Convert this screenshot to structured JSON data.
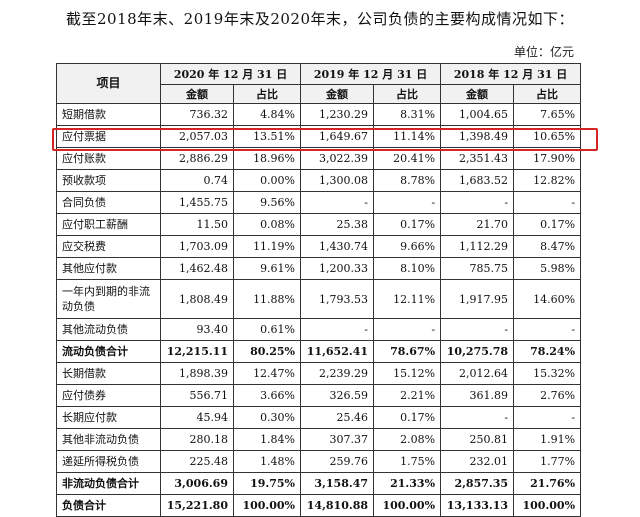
{
  "intro": "截至2018年末、2019年末及2020年末，公司负债的主要构成情况如下：",
  "unit": "单位：亿元",
  "headers": {
    "item": "项目",
    "years": [
      "2020 年 12 月 31 日",
      "2019 年 12 月 31 日",
      "2018 年 12 月 31 日"
    ],
    "amount": "金额",
    "ratio": "占比"
  },
  "rows": [
    {
      "name": "短期借款",
      "v": [
        "736.32",
        "4.84%",
        "1,230.29",
        "8.31%",
        "1,004.65",
        "7.65%"
      ]
    },
    {
      "name": "应付票据",
      "v": [
        "2,057.03",
        "13.51%",
        "1,649.67",
        "11.14%",
        "1,398.49",
        "10.65%"
      ]
    },
    {
      "name": "应付账款",
      "v": [
        "2,886.29",
        "18.96%",
        "3,022.39",
        "20.41%",
        "2,351.43",
        "17.90%"
      ]
    },
    {
      "name": "预收款项",
      "v": [
        "0.74",
        "0.00%",
        "1,300.08",
        "8.78%",
        "1,683.52",
        "12.82%"
      ]
    },
    {
      "name": "合同负债",
      "v": [
        "1,455.75",
        "9.56%",
        "-",
        "-",
        "-",
        "-"
      ]
    },
    {
      "name": "应付职工薪酬",
      "v": [
        "11.50",
        "0.08%",
        "25.38",
        "0.17%",
        "21.70",
        "0.17%"
      ]
    },
    {
      "name": "应交税费",
      "v": [
        "1,703.09",
        "11.19%",
        "1,430.74",
        "9.66%",
        "1,112.29",
        "8.47%"
      ]
    },
    {
      "name": "其他应付款",
      "v": [
        "1,462.48",
        "9.61%",
        "1,200.33",
        "8.10%",
        "785.75",
        "5.98%"
      ]
    },
    {
      "name": "一年内到期的非流动负债",
      "v": [
        "1,808.49",
        "11.88%",
        "1,793.53",
        "12.11%",
        "1,917.95",
        "14.60%"
      ]
    },
    {
      "name": "其他流动负债",
      "v": [
        "93.40",
        "0.61%",
        "-",
        "-",
        "-",
        "-"
      ]
    },
    {
      "name": "流动负债合计",
      "v": [
        "12,215.11",
        "80.25%",
        "11,652.41",
        "78.67%",
        "10,275.78",
        "78.24%"
      ]
    },
    {
      "name": "长期借款",
      "v": [
        "1,898.39",
        "12.47%",
        "2,239.29",
        "15.12%",
        "2,012.64",
        "15.32%"
      ]
    },
    {
      "name": "应付债券",
      "v": [
        "556.71",
        "3.66%",
        "326.59",
        "2.21%",
        "361.89",
        "2.76%"
      ]
    },
    {
      "name": "长期应付款",
      "v": [
        "45.94",
        "0.30%",
        "25.46",
        "0.17%",
        "-",
        "-"
      ]
    },
    {
      "name": "其他非流动负债",
      "v": [
        "280.18",
        "1.84%",
        "307.37",
        "2.08%",
        "250.81",
        "1.91%"
      ]
    },
    {
      "name": "递延所得税负债",
      "v": [
        "225.48",
        "1.48%",
        "259.76",
        "1.75%",
        "232.01",
        "1.77%"
      ]
    },
    {
      "name": "非流动负债合计",
      "v": [
        "3,006.69",
        "19.75%",
        "3,158.47",
        "21.33%",
        "2,857.35",
        "21.76%"
      ]
    },
    {
      "name": "负债合计",
      "v": [
        "15,221.80",
        "100.00%",
        "14,810.88",
        "100.00%",
        "13,133.13",
        "100.00%"
      ]
    }
  ],
  "highlight_color": "#d62525"
}
